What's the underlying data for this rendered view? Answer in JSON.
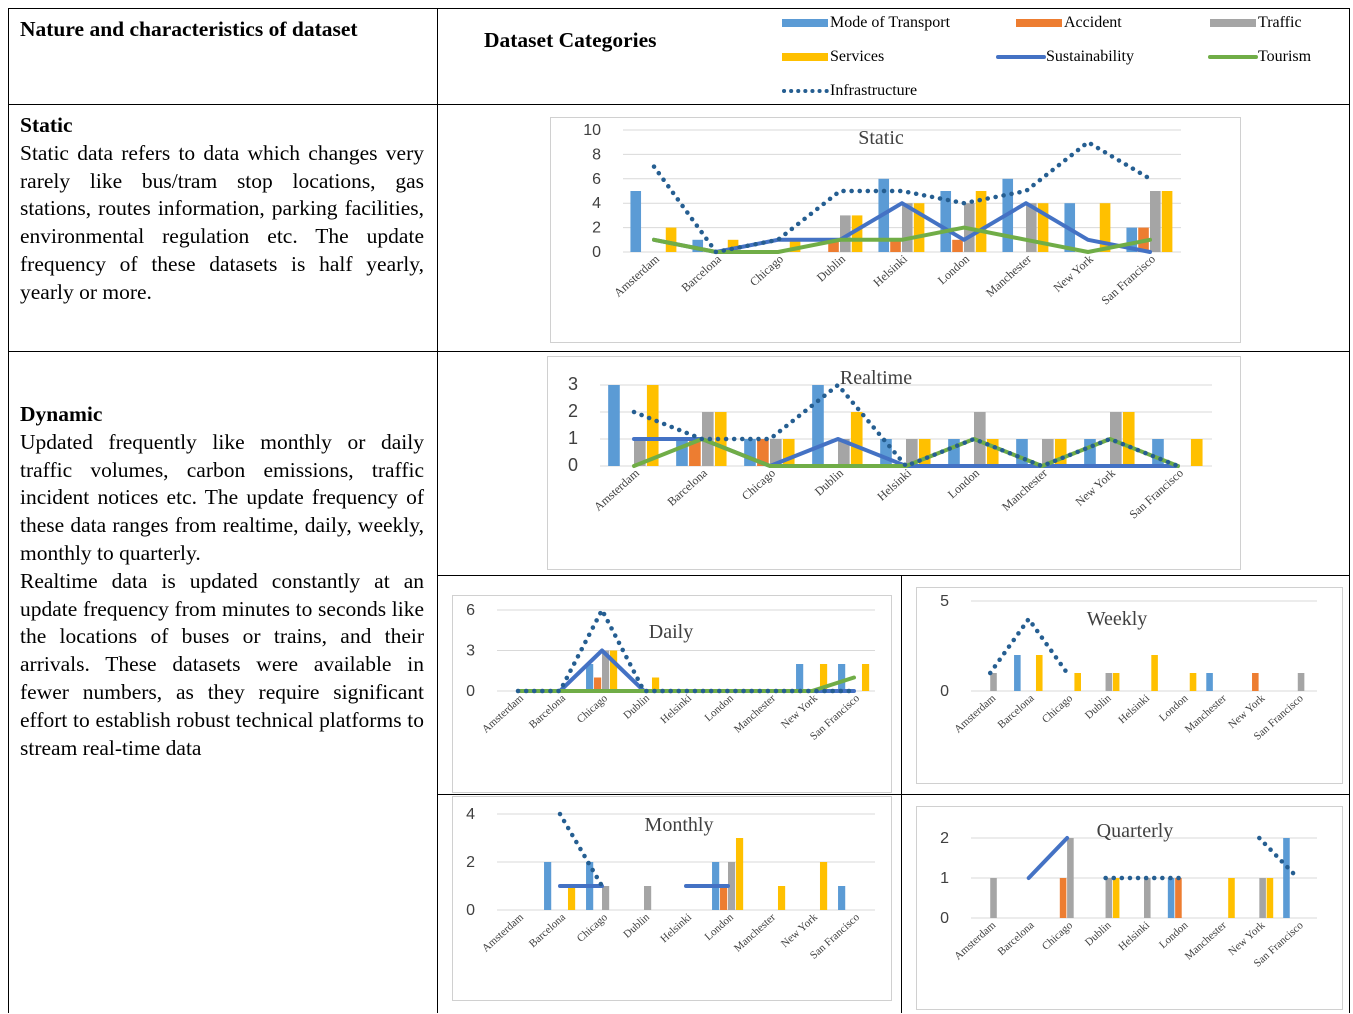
{
  "table": {
    "header_left": "Nature and characteristics of dataset",
    "header_right": "Dataset Categories",
    "static_title": "Static",
    "static_text": "Static data refers to data which changes very rarely like bus/tram stop locations, gas stations, routes information, parking facilities, environmental regulation etc. The update frequency of these datasets is half yearly, yearly or more.",
    "dynamic_title": "Dynamic",
    "dynamic_text1": "Updated frequently like monthly or daily traffic volumes, carbon emissions, traffic incident notices etc. The update frequency of these data ranges from realtime, daily, weekly, monthly to quarterly.",
    "dynamic_text2": "Realtime data is updated constantly at an update frequency from minutes to seconds like the locations of buses or trains, and their arrivals. These datasets were available in fewer numbers, as they require significant effort to establish robust technical platforms to stream real-time data"
  },
  "legend": [
    {
      "name": "Mode of Transport",
      "kind": "bar",
      "color": "#5B9BD5"
    },
    {
      "name": "Accident",
      "kind": "bar",
      "color": "#ED7D31"
    },
    {
      "name": "Traffic",
      "kind": "bar",
      "color": "#A5A5A5"
    },
    {
      "name": "Services",
      "kind": "bar",
      "color": "#FFC000"
    },
    {
      "name": "Sustainability",
      "kind": "line",
      "color": "#4472C4"
    },
    {
      "name": "Tourism",
      "kind": "line",
      "color": "#70AD47"
    },
    {
      "name": "Infrastructure",
      "kind": "dotted",
      "color": "#255E91"
    }
  ],
  "chart_data": [
    {
      "id": "static",
      "type": "bar",
      "title": "Static",
      "categories": [
        "Amsterdam",
        "Barcelona",
        "Chicago",
        "Dublin",
        "Helsinki",
        "London",
        "Manchester",
        "New York",
        "San Francisco"
      ],
      "yticks": [
        0,
        2,
        4,
        6,
        8,
        10
      ],
      "ylim": [
        0,
        10
      ],
      "series": [
        {
          "name": "Mode of Transport",
          "kind": "bar",
          "values": [
            5,
            1,
            0,
            0,
            6,
            5,
            6,
            4,
            2
          ]
        },
        {
          "name": "Accident",
          "kind": "bar",
          "values": [
            0,
            0,
            0,
            1,
            1,
            1,
            0,
            0,
            2
          ]
        },
        {
          "name": "Traffic",
          "kind": "bar",
          "values": [
            0,
            0,
            0,
            3,
            4,
            4,
            4,
            0,
            5
          ]
        },
        {
          "name": "Services",
          "kind": "bar",
          "values": [
            2,
            1,
            1,
            3,
            4,
            5,
            4,
            4,
            5
          ]
        },
        {
          "name": "Sustainability",
          "kind": "line",
          "values": [
            1,
            0,
            1,
            1,
            4,
            1,
            4,
            1,
            0
          ]
        },
        {
          "name": "Tourism",
          "kind": "line",
          "values": [
            1,
            0,
            0,
            1,
            1,
            2,
            1,
            0,
            1
          ]
        },
        {
          "name": "Infrastructure",
          "kind": "dotted",
          "values": [
            7,
            0,
            1,
            5,
            5,
            4,
            5,
            9,
            6
          ]
        }
      ]
    },
    {
      "id": "realtime",
      "type": "bar",
      "title": "Realtime",
      "categories": [
        "Amsterdam",
        "Barcelona",
        "Chicago",
        "Dublin",
        "Helsinki",
        "London",
        "Manchester",
        "New York",
        "San Francisco"
      ],
      "yticks": [
        0,
        1,
        2,
        3
      ],
      "ylim": [
        0,
        3
      ],
      "series": [
        {
          "name": "Mode of Transport",
          "kind": "bar",
          "values": [
            3,
            1,
            1,
            3,
            1,
            1,
            1,
            1,
            1
          ]
        },
        {
          "name": "Accident",
          "kind": "bar",
          "values": [
            0,
            1,
            1,
            0,
            0,
            0,
            0,
            0,
            0
          ]
        },
        {
          "name": "Traffic",
          "kind": "bar",
          "values": [
            1,
            2,
            1,
            1,
            1,
            2,
            1,
            2,
            0
          ]
        },
        {
          "name": "Services",
          "kind": "bar",
          "values": [
            3,
            2,
            1,
            2,
            1,
            1,
            1,
            2,
            1
          ]
        },
        {
          "name": "Sustainability",
          "kind": "line",
          "values": [
            1,
            1,
            0,
            1,
            0,
            0,
            0,
            0,
            0
          ]
        },
        {
          "name": "Tourism",
          "kind": "line",
          "values": [
            0,
            1,
            0,
            0,
            0,
            1,
            0,
            1,
            0
          ]
        },
        {
          "name": "Infrastructure",
          "kind": "dotted",
          "values": [
            2,
            1,
            1,
            3,
            0,
            1,
            0,
            1,
            0
          ]
        }
      ]
    },
    {
      "id": "daily",
      "type": "bar",
      "title": "Daily",
      "categories": [
        "Amsterdam",
        "Barcelona",
        "Chicago",
        "Dublin",
        "Helsinki",
        "London",
        "Manchester",
        "New York",
        "San Francisco"
      ],
      "yticks": [
        0,
        3,
        6
      ],
      "ylim": [
        0,
        6
      ],
      "series": [
        {
          "name": "Mode of Transport",
          "kind": "bar",
          "values": [
            0,
            0,
            2,
            0,
            0,
            0,
            0,
            2,
            2
          ]
        },
        {
          "name": "Accident",
          "kind": "bar",
          "values": [
            0,
            0,
            1,
            0,
            0,
            0,
            0,
            0,
            0
          ]
        },
        {
          "name": "Traffic",
          "kind": "bar",
          "values": [
            0,
            0,
            3,
            0,
            0,
            0,
            0,
            0,
            0
          ]
        },
        {
          "name": "Services",
          "kind": "bar",
          "values": [
            0,
            0,
            3,
            1,
            0,
            0,
            0,
            2,
            2
          ]
        },
        {
          "name": "Sustainability",
          "kind": "line",
          "values": [
            0,
            0,
            3,
            0,
            0,
            0,
            0,
            0,
            0
          ]
        },
        {
          "name": "Tourism",
          "kind": "line",
          "values": [
            0,
            0,
            0,
            0,
            0,
            0,
            0,
            0,
            1
          ]
        },
        {
          "name": "Infrastructure",
          "kind": "dotted",
          "values": [
            0,
            0,
            6,
            0,
            0,
            0,
            0,
            0,
            0
          ]
        }
      ]
    },
    {
      "id": "weekly",
      "type": "bar",
      "title": "Weekly",
      "categories": [
        "Amsterdam",
        "Barcelona",
        "Chicago",
        "Dublin",
        "Helsinki",
        "London",
        "Manchester",
        "New York",
        "San Francisco"
      ],
      "yticks": [
        0,
        5
      ],
      "ylim": [
        0,
        5
      ],
      "series": [
        {
          "name": "Mode of Transport",
          "kind": "bar",
          "values": [
            0,
            2,
            0,
            0,
            0,
            0,
            1,
            0,
            0
          ]
        },
        {
          "name": "Accident",
          "kind": "bar",
          "values": [
            0,
            0,
            0,
            0,
            0,
            0,
            0,
            1,
            0
          ]
        },
        {
          "name": "Traffic",
          "kind": "bar",
          "values": [
            1,
            0,
            0,
            1,
            0,
            0,
            0,
            0,
            1
          ]
        },
        {
          "name": "Services",
          "kind": "bar",
          "values": [
            0,
            2,
            1,
            1,
            2,
            1,
            0,
            0,
            0
          ]
        },
        {
          "name": "Infrastructure",
          "kind": "dotted",
          "values": [
            1,
            4,
            1,
            null,
            null,
            null,
            null,
            null,
            null
          ]
        }
      ]
    },
    {
      "id": "monthly",
      "type": "bar",
      "title": "Monthly",
      "categories": [
        "Amsterdam",
        "Barcelona",
        "Chicago",
        "Dublin",
        "Helsinki",
        "London",
        "Manchester",
        "New York",
        "San Francisco"
      ],
      "yticks": [
        0,
        2,
        4
      ],
      "ylim": [
        0,
        4
      ],
      "series": [
        {
          "name": "Mode of Transport",
          "kind": "bar",
          "values": [
            0,
            2,
            2,
            0,
            0,
            2,
            0,
            0,
            1
          ]
        },
        {
          "name": "Accident",
          "kind": "bar",
          "values": [
            0,
            0,
            0,
            0,
            0,
            1,
            0,
            0,
            0
          ]
        },
        {
          "name": "Traffic",
          "kind": "bar",
          "values": [
            0,
            0,
            1,
            1,
            0,
            2,
            0,
            0,
            0
          ]
        },
        {
          "name": "Services",
          "kind": "bar",
          "values": [
            0,
            1,
            0,
            0,
            0,
            3,
            1,
            2,
            0
          ]
        },
        {
          "name": "Sustainability",
          "kind": "line",
          "values": [
            null,
            1,
            1,
            null,
            1,
            1,
            null,
            null,
            null
          ]
        },
        {
          "name": "Infrastructure",
          "kind": "dotted",
          "values": [
            null,
            4,
            1,
            null,
            null,
            null,
            null,
            null,
            null
          ]
        }
      ]
    },
    {
      "id": "quarterly",
      "type": "bar",
      "title": "Quarterly",
      "categories": [
        "Amsterdam",
        "Barcelona",
        "Chicago",
        "Dublin",
        "Helsinki",
        "London",
        "Manchester",
        "New York",
        "San Francisco"
      ],
      "yticks": [
        0,
        1,
        2
      ],
      "ylim": [
        0,
        2
      ],
      "series": [
        {
          "name": "Mode of Transport",
          "kind": "bar",
          "values": [
            0,
            0,
            0,
            0,
            0,
            1,
            0,
            0,
            2
          ]
        },
        {
          "name": "Accident",
          "kind": "bar",
          "values": [
            0,
            0,
            1,
            0,
            0,
            1,
            0,
            0,
            0
          ]
        },
        {
          "name": "Traffic",
          "kind": "bar",
          "values": [
            1,
            0,
            2,
            1,
            1,
            0,
            0,
            1,
            0
          ]
        },
        {
          "name": "Services",
          "kind": "bar",
          "values": [
            0,
            0,
            0,
            1,
            0,
            0,
            1,
            1,
            0
          ]
        },
        {
          "name": "Sustainability",
          "kind": "line",
          "values": [
            null,
            1,
            2,
            null,
            null,
            null,
            null,
            null,
            null
          ]
        },
        {
          "name": "Infrastructure",
          "kind": "dotted",
          "values": [
            null,
            null,
            null,
            1,
            1,
            1,
            null,
            2,
            1
          ]
        }
      ]
    }
  ]
}
